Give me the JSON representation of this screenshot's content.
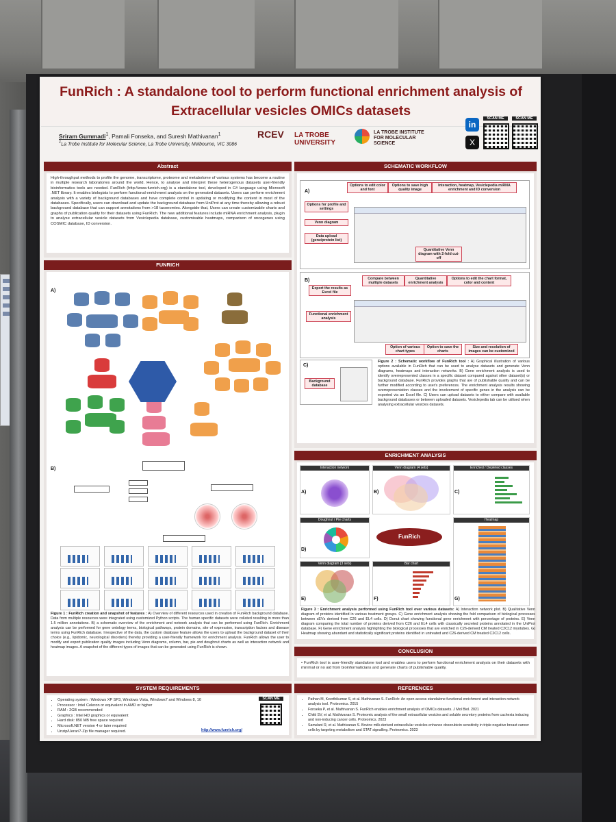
{
  "poster": {
    "title_line1": "FunRich : A standalone tool to perform functional enrichment analysis of",
    "title_line2": "Extracellular vesicles OMICs datasets",
    "authors": {
      "first": "Sriram Gummadi",
      "others": ", Pamali Fonseka, and Suresh Mathivanan",
      "affiliation": "La Trobe Institute for Molecular Science, La Trobe University, Melbourne, VIC 3086"
    },
    "logos": [
      "RCEV",
      "LA TROBE UNIVERSITY",
      "LA TROBE INSTITUTE FOR MOLECULAR SCIENCE"
    ],
    "social": {
      "linkedin": "in",
      "x": "X",
      "scan1": "SCAN ME",
      "scan2": "SCAN ME"
    },
    "abstract": {
      "heading": "Abstract",
      "text": "High-throughput methods to profile the genome, transcriptome, proteome and metabolome of various systems has become a routine in multiple research laboratories around the world. Hence, to analyse and interpret these heterogenous datasets user-friendly bioinformatics tools are needed. FunRich (http://www.funrich.org) is a standalone tool, developed in C# language using Microsoft .NET library. It enables biologists to perform functional enrichment analysis on the generated datasets. Users can perform enrichment analysis with a variety of background databases and have complete control in updating or modifying the content in most of the databases. Specifically, users can download and update the background database from UniProt at any time thereby allowing a robust background database that can support annotations from >18 taxonomies. Alongside that, Users can create customizable charts and graphs of publication quality for their datasets using FunRich. The new additional features include miRNA enrichment analysis, plugin to analyse extracellular vesicle datasets from Vesiclepedia database, customisable heatmaps, comparison of oncogenes using COSMIC database, ID conversion."
    },
    "funrich": {
      "heading": "FUNRICH",
      "label_a": "A)",
      "label_b": "B)",
      "caption_title": "Figure 1 : FunRich creation and snapshot of features :",
      "caption": "A) Overview of different resources used in creation of FunRich background database. Data from multiple resources were integrated using customized Python scripts. The human specific datasets were collated resulting in more than 1.5 million annotations. B) a schematic overview of the enrichment and network analysis that can be performed using FunRich. Enrichment analysis can be performed for gene ontology terms, biological pathways, protein domains, site of expression, transcription factors and disease terms using FunRich database. Irrespective of the data, the custom database feature allows the users to upload the background dataset of their choice (e.g., lipidomic, neurological disorders) thereby providing a user-friendly framework for enrichment analysis. FunRich allows the user to modify and export publication quality images including Venn diagrams, column, bar, pie and doughnut charts as well as interaction network and heatmap images. A snapshot of the different types of images that can be generated using FunRich is shown."
    },
    "system": {
      "heading": "SYSTEM REQUIREMENTS",
      "items": [
        "Operating system : Windows XP SP3, Windows Vista, Windows7 and Windows 8, 10",
        "Processor : Intel Celeron or equivalent in AMD or higher",
        "RAM : 2GB recommended",
        "Graphics : Intel HD graphics or equivalent",
        "Hard disk: 850 MB free space required",
        "Microsoft.NET version 4 or later required",
        "Unzip/Uerar/7-Zip file manager required."
      ],
      "url": "http://www.funrich.org/",
      "scan": "SCAN ME"
    },
    "workflow": {
      "heading": "SCHEMATIC WORKFLOW",
      "label_a": "A)",
      "label_b": "B)",
      "label_c": "C)",
      "a_callouts": [
        "Options to edit color and font",
        "Options to save high quality image",
        "Interaction, heatmap, Vesiclepedia miRNA enrichment and ID conversion",
        "Options for profile and settings",
        "Venn diagram",
        "Data upload (gene/protein list)",
        "Quantitative Venn diagram with 2-fold cut-off"
      ],
      "b_callouts": [
        "Export the results as Excel file",
        "Compare between multiple datasets",
        "Quantitative enrichment analysis",
        "Options to edit the chart format, color and content",
        "Functional enrichment analysis",
        "Option of various chart types",
        "Option to save the charts",
        "Size and resolution of images can be customized"
      ],
      "c_callout": "Background database",
      "caption_title": "Figure 2 : Schematic workflow of FunRich tool :",
      "caption": "A) Graphical illustration of various options available in FunRich that can be used to analyse datasets and generate Venn diagrams, heatmaps and interaction networks. B) Gene enrichment analysis is used to identify overrepresented classes in a specific dataset compared against other dataset(s) or background database. FunRich provides graphs that are of publishable quality and can be further modified according to user's preferences. The enrichment analysis results showing overrepresentation classes and the involvement of specific genes in the analysis can be exported via an Excel file. C) Users can upload datasets to either compare with available background databases or between uploaded datasets. Vesiclepedia tab can be utilised when analysing extracellular vesicles datasets."
    },
    "enrichment": {
      "heading": "ENRICHMENT ANALYSIS",
      "panels": [
        "Interaction network",
        "Venn diagram (4 sets)",
        "Enriched / Depleted classes",
        "Doughnut / Pie charts",
        "Heatmap",
        "Venn diagram (3 sets)",
        "Bar chart"
      ],
      "labels": [
        "A)",
        "B)",
        "C)",
        "D)",
        "E)",
        "F)",
        "G)"
      ],
      "logo": "FunRich",
      "caption_title": "Figure 3 : Enrichment analysis performed using FunRich tool over various datasets:",
      "caption": "A) Interaction network plot. B) Qualitative Venn diagram of proteins identified in various treatment groups. C) Gene enrichment analysis showing the fold comparison of biological processes between sEVs derived from C26 and EL4 cells. D) Donut chart showing functional gene enrichment with percentage of proteins. E) Venn diagram comparing the total number of proteins derived from C26 and EL4 cells with classically secreted proteins annotated in the UniProt database. F) Gene enrichment analysis highlighting the biological processes that are enriched in C26-derived CM treated C2C12 myotubes. G) Heatmap showing abundant and statistically significant proteins identified in untreated and C26-derived CM treated C2C12 cells."
    },
    "conclusion": {
      "heading": "CONCLUSION",
      "text": "FunRich tool is user-friendly standalone tool and enables users to perform functional enrichment analysis on their datasets with minimal or no aid from bioinformaticians and generate charts of publishable quality."
    },
    "references": {
      "heading": "REFERENCES",
      "items": [
        "Pathan M, Keerthikumar S, et al. Mathivanan S. FunRich: An open access standalone functional enrichment and interaction network analysis tool. Proteomics. 2015",
        "Fonseka P, et al. Mathivanan S. FunRich enables enrichment analysis of OMICs datasets. J Mol Biol. 2021",
        "Chitti SV, et al. Mathivanan S. Proteomic analysis of the small extracellular vesicles and soluble secretory proteins from cachexia inducing and non-inducing cancer cells. Proteomics. 2023",
        "Sanwlani R, et al. Mathivanan S. Bovine milk-derived extracellular vesicles enhance doxorubicin sensitivity in triple negative breast cancer cells by targeting metabolism and STAT signalling. Proteomics. 2023"
      ]
    }
  },
  "colors": {
    "accent": "#7a1d1d",
    "title": "#8b1a1a"
  }
}
